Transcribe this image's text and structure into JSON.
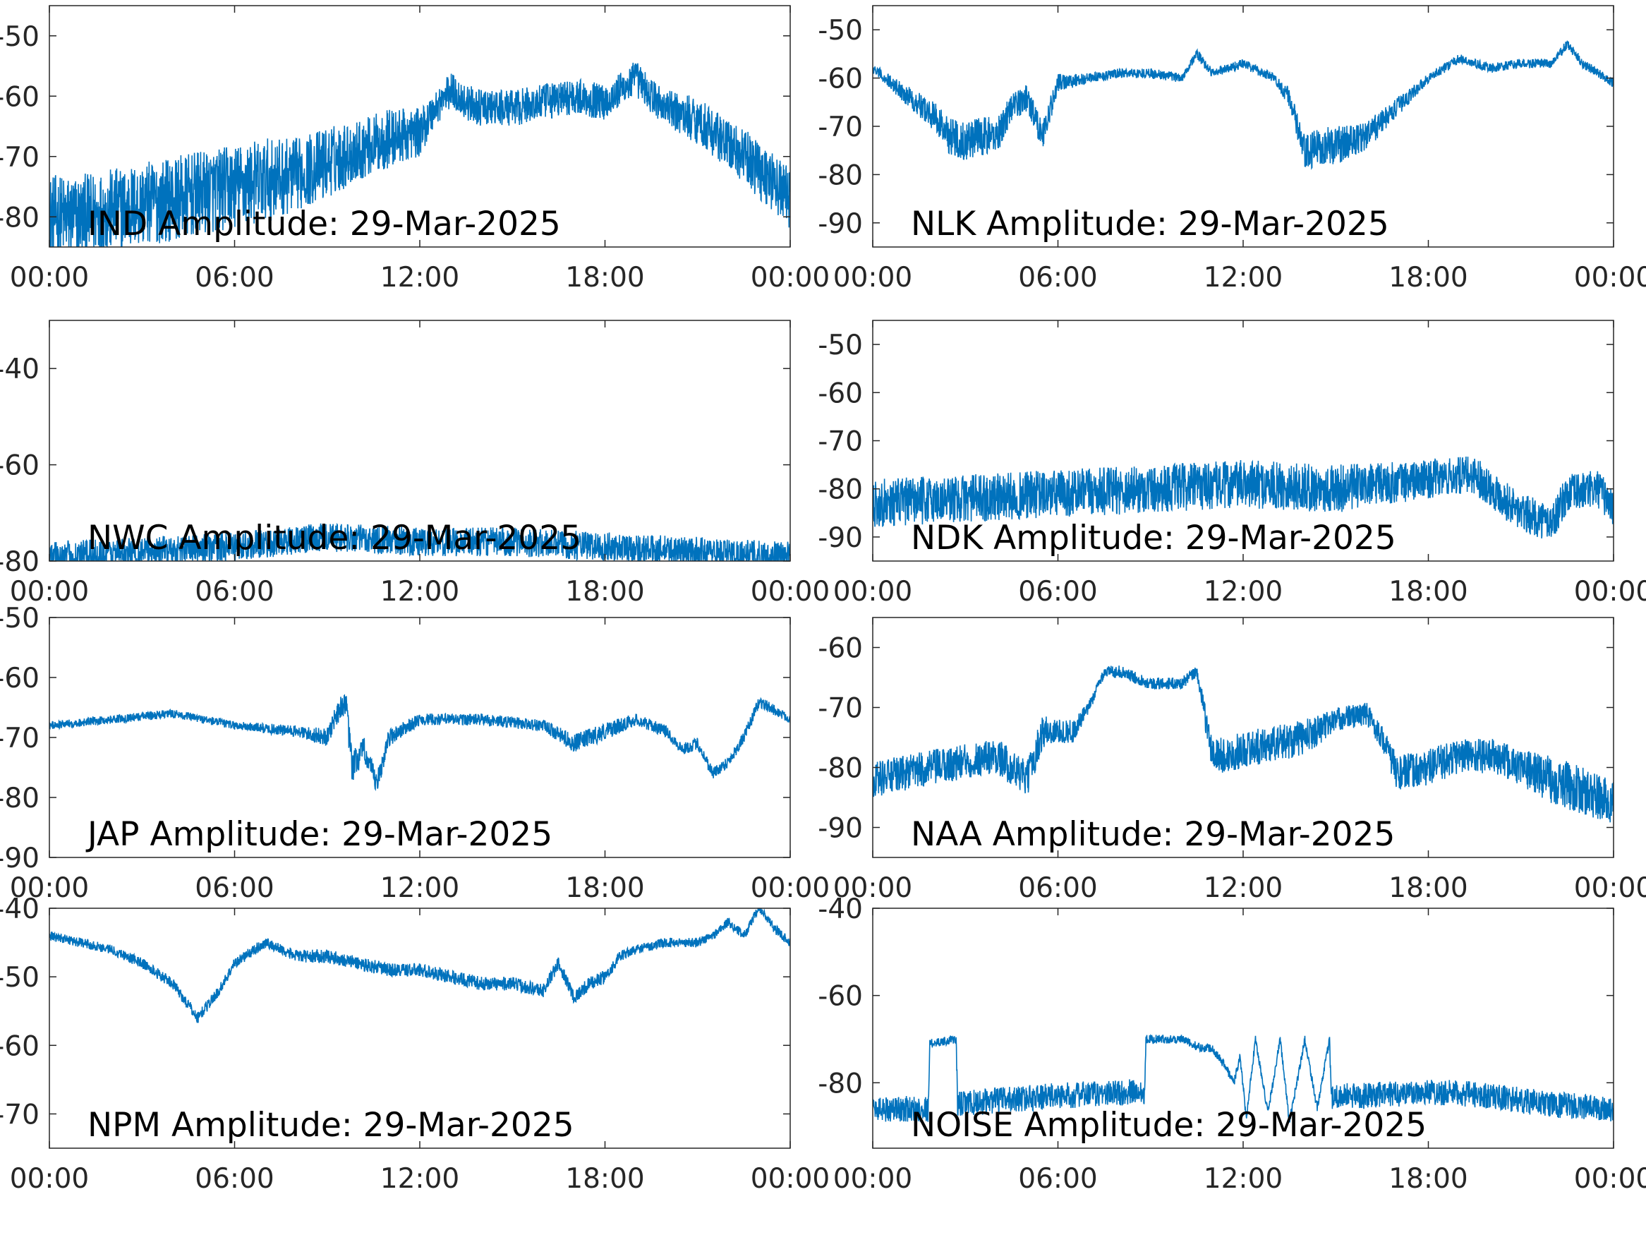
{
  "figure": {
    "line_color": "#0072BD",
    "axis_color": "#262626",
    "background": "#FFFFFF"
  },
  "chart_data": [
    {
      "type": "line",
      "title": "IND Amplitude: 29-Mar-2025",
      "xlabel": "",
      "ylabel": "",
      "x_ticks": [
        "00:00",
        "06:00",
        "12:00",
        "18:00",
        "00:00"
      ],
      "y_ticks": [
        "-50",
        "-60",
        "-70",
        "-80"
      ],
      "ylim": [
        -85,
        -45
      ],
      "grid": false,
      "series": [
        {
          "x_hours": [
            0,
            1,
            2,
            3,
            4,
            5,
            6,
            7,
            8,
            9,
            10,
            11,
            12,
            12.5,
            13,
            13.5,
            14,
            15,
            16,
            17,
            18,
            18.5,
            19,
            19.5,
            20,
            21,
            22,
            23,
            24
          ],
          "y": [
            -80,
            -80,
            -79,
            -78,
            -77,
            -76,
            -75,
            -74,
            -73,
            -71,
            -69,
            -67,
            -66,
            -62,
            -59,
            -61,
            -62,
            -62,
            -61,
            -60,
            -61,
            -59,
            -57,
            -60,
            -62,
            -64,
            -68,
            -72,
            -77
          ],
          "noise": [
            7,
            7,
            7,
            7,
            7,
            7,
            7,
            7,
            6,
            6,
            5,
            5,
            4,
            3,
            3,
            3,
            3,
            3,
            3,
            3,
            3,
            3,
            3,
            3,
            3,
            4,
            4,
            5,
            5
          ]
        }
      ]
    },
    {
      "type": "line",
      "title": "NLK Amplitude: 29-Mar-2025",
      "xlabel": "",
      "ylabel": "",
      "x_ticks": [
        "00:00",
        "06:00",
        "12:00",
        "18:00",
        "00:00"
      ],
      "y_ticks": [
        "-50",
        "-60",
        "-70",
        "-80",
        "-90"
      ],
      "ylim": [
        -95,
        -45
      ],
      "grid": false,
      "series": [
        {
          "x_hours": [
            0,
            1,
            2,
            2.5,
            3,
            3.5,
            4,
            4.5,
            5,
            5.5,
            6,
            7,
            8,
            9,
            10,
            10.5,
            11,
            12,
            13,
            13.5,
            14,
            14.5,
            15,
            16,
            17,
            18,
            19,
            20,
            21,
            22,
            22.5,
            23,
            24
          ],
          "y": [
            -58,
            -63,
            -68,
            -72,
            -73,
            -72,
            -72,
            -66,
            -64,
            -72,
            -61,
            -60,
            -59,
            -59,
            -60,
            -55,
            -59,
            -57,
            -60,
            -64,
            -76,
            -74,
            -74,
            -72,
            -66,
            -60,
            -56,
            -58,
            -57,
            -57,
            -53,
            -57,
            -61
          ],
          "noise": [
            1,
            2,
            3,
            4,
            4,
            4,
            4,
            3,
            3,
            3,
            2,
            1,
            1,
            1,
            1,
            1,
            1,
            1,
            1,
            2,
            4,
            4,
            4,
            3,
            2,
            1,
            1,
            1,
            1,
            1,
            1,
            1,
            1
          ]
        }
      ]
    },
    {
      "type": "line",
      "title": "NWC Amplitude: 29-Mar-2025",
      "xlabel": "",
      "ylabel": "",
      "x_ticks": [
        "00:00",
        "06:00",
        "12:00",
        "18:00",
        "00:00"
      ],
      "y_ticks": [
        "-40",
        "-60",
        "-80"
      ],
      "ylim": [
        -80,
        -30
      ],
      "grid": false,
      "series": [
        {
          "x_hours": [
            0,
            3,
            6,
            9,
            12,
            15,
            18,
            21,
            24
          ],
          "y": [
            -79,
            -78,
            -77,
            -75,
            -76,
            -76,
            -77,
            -78,
            -79
          ],
          "noise": [
            3,
            3,
            3,
            3,
            3,
            3,
            3,
            3,
            3
          ]
        }
      ]
    },
    {
      "type": "line",
      "title": "NDK Amplitude: 29-Mar-2025",
      "xlabel": "",
      "ylabel": "",
      "x_ticks": [
        "00:00",
        "06:00",
        "12:00",
        "18:00",
        "00:00"
      ],
      "y_ticks": [
        "-50",
        "-60",
        "-70",
        "-80",
        "-90"
      ],
      "ylim": [
        -95,
        -45
      ],
      "grid": false,
      "series": [
        {
          "x_hours": [
            0,
            3,
            6,
            9,
            12,
            15,
            18,
            19.5,
            21,
            22,
            22.5,
            23.5,
            24
          ],
          "y": [
            -83,
            -82,
            -81,
            -80,
            -79,
            -80,
            -78,
            -77,
            -85,
            -87,
            -81,
            -80,
            -84
          ],
          "noise": [
            5,
            5,
            5,
            5,
            5,
            5,
            4,
            4,
            4,
            4,
            4,
            4,
            4
          ]
        }
      ]
    },
    {
      "type": "line",
      "title": "JAP Amplitude: 29-Mar-2025",
      "xlabel": "",
      "ylabel": "",
      "x_ticks": [
        "00:00",
        "06:00",
        "12:00",
        "18:00",
        "00:00"
      ],
      "y_ticks": [
        "-50",
        "-60",
        "-70",
        "-80",
        "-90"
      ],
      "ylim": [
        -90,
        -50
      ],
      "grid": false,
      "series": [
        {
          "x_hours": [
            0,
            2,
            4,
            6,
            8,
            9,
            9.3,
            9.6,
            9.8,
            10.2,
            10.6,
            11,
            12,
            13,
            14,
            16,
            17,
            18,
            19,
            20,
            20.5,
            21,
            21.5,
            22,
            22.5,
            23,
            24
          ],
          "y": [
            -68,
            -67,
            -66,
            -68,
            -69,
            -70,
            -66,
            -64,
            -75,
            -72,
            -78,
            -70,
            -67,
            -67,
            -67,
            -68,
            -71,
            -69,
            -67,
            -69,
            -72,
            -71,
            -76,
            -74,
            -70,
            -64,
            -67
          ],
          "noise": [
            0.7,
            0.7,
            0.7,
            0.7,
            1,
            1.5,
            2,
            2,
            3,
            2,
            2,
            1.5,
            1,
            1,
            1,
            1,
            1.5,
            1.5,
            1,
            1,
            1,
            1,
            1,
            1,
            1,
            1,
            0.7
          ]
        }
      ]
    },
    {
      "type": "line",
      "title": "NAA Amplitude: 29-Mar-2025",
      "xlabel": "",
      "ylabel": "",
      "x_ticks": [
        "00:00",
        "06:00",
        "12:00",
        "18:00",
        "00:00"
      ],
      "y_ticks": [
        "-60",
        "-70",
        "-80",
        "-90"
      ],
      "ylim": [
        -95,
        -55
      ],
      "grid": false,
      "series": [
        {
          "x_hours": [
            0,
            2,
            4,
            5,
            5.5,
            6,
            6.5,
            7,
            7.5,
            8,
            9,
            10,
            10.5,
            11,
            11.5,
            12,
            13,
            14,
            15,
            16,
            16.5,
            17,
            18,
            19,
            20,
            21,
            22,
            23,
            24
          ],
          "y": [
            -82,
            -80,
            -78,
            -82,
            -74,
            -74,
            -74,
            -70,
            -64,
            -64,
            -66,
            -66,
            -64,
            -78,
            -78,
            -77,
            -76,
            -75,
            -72,
            -71,
            -75,
            -81,
            -80,
            -78,
            -78,
            -80,
            -82,
            -84,
            -86
          ],
          "noise": [
            3,
            3,
            3,
            3,
            3,
            2,
            2,
            1,
            1,
            1,
            1,
            1,
            1,
            3,
            3,
            3,
            3,
            3,
            2,
            2,
            2,
            3,
            3,
            3,
            3,
            3,
            4,
            4,
            4
          ]
        }
      ]
    },
    {
      "type": "line",
      "title": "NPM Amplitude: 29-Mar-2025",
      "xlabel": "",
      "ylabel": "",
      "x_ticks": [
        "00:00",
        "06:00",
        "12:00",
        "18:00",
        "00:00"
      ],
      "y_ticks": [
        "-40",
        "-50",
        "-60",
        "-70"
      ],
      "ylim": [
        -75,
        -40
      ],
      "grid": false,
      "series": [
        {
          "x_hours": [
            0,
            1,
            2,
            3,
            4,
            4.8,
            5.5,
            6,
            7,
            7.5,
            8,
            9,
            10,
            11,
            12,
            13,
            14,
            15,
            16,
            16.5,
            17,
            17.5,
            18,
            18.5,
            19,
            20,
            21,
            21.5,
            22,
            22.5,
            23,
            23.5,
            24
          ],
          "y": [
            -44,
            -45,
            -46,
            -48,
            -51,
            -56,
            -52,
            -48,
            -45,
            -46,
            -47,
            -47,
            -48,
            -49,
            -49,
            -50,
            -51,
            -51,
            -52,
            -48,
            -53,
            -51,
            -50,
            -47,
            -46,
            -45,
            -45,
            -44,
            -42,
            -44,
            -40,
            -43,
            -45
          ],
          "noise": [
            0.7,
            0.7,
            0.7,
            0.8,
            0.8,
            0.9,
            0.8,
            0.8,
            0.8,
            0.8,
            0.9,
            1,
            1,
            1,
            1,
            1,
            1,
            1,
            1,
            1,
            1,
            1,
            1,
            0.8,
            0.7,
            0.7,
            0.7,
            0.7,
            0.7,
            0.7,
            0.7,
            0.7,
            0.7
          ]
        }
      ]
    },
    {
      "type": "line",
      "title": "NOISE Amplitude: 29-Mar-2025",
      "xlabel": "",
      "ylabel": "",
      "x_ticks": [
        "00:00",
        "06:00",
        "12:00",
        "18:00",
        "00:00"
      ],
      "y_ticks": [
        "-40",
        "-60",
        "-80"
      ],
      "ylim": [
        -95,
        -40
      ],
      "grid": false,
      "series": [
        {
          "x_hours": [
            0,
            1.8,
            1.85,
            2.7,
            2.75,
            4,
            6,
            8.8,
            8.85,
            10,
            10.6,
            11,
            11.4,
            11.7,
            11.9,
            12.1,
            12.4,
            12.8,
            13.2,
            13.5,
            14,
            14.4,
            14.8,
            14.85,
            16,
            18,
            20,
            22,
            24
          ],
          "y": [
            -86,
            -86,
            -71,
            -70,
            -85,
            -84,
            -83,
            -82,
            -70,
            -70,
            -72,
            -72,
            -76,
            -80,
            -74,
            -88,
            -70,
            -87,
            -70,
            -89,
            -70,
            -86,
            -70,
            -83,
            -83,
            -82,
            -83,
            -85,
            -86
          ],
          "noise": [
            3,
            3,
            1,
            1,
            3,
            3,
            3,
            3,
            1,
            1,
            1,
            1,
            1,
            1,
            1,
            1,
            1,
            1,
            1,
            1,
            1,
            1,
            1,
            3,
            3,
            3,
            3,
            3,
            3
          ]
        }
      ]
    }
  ]
}
